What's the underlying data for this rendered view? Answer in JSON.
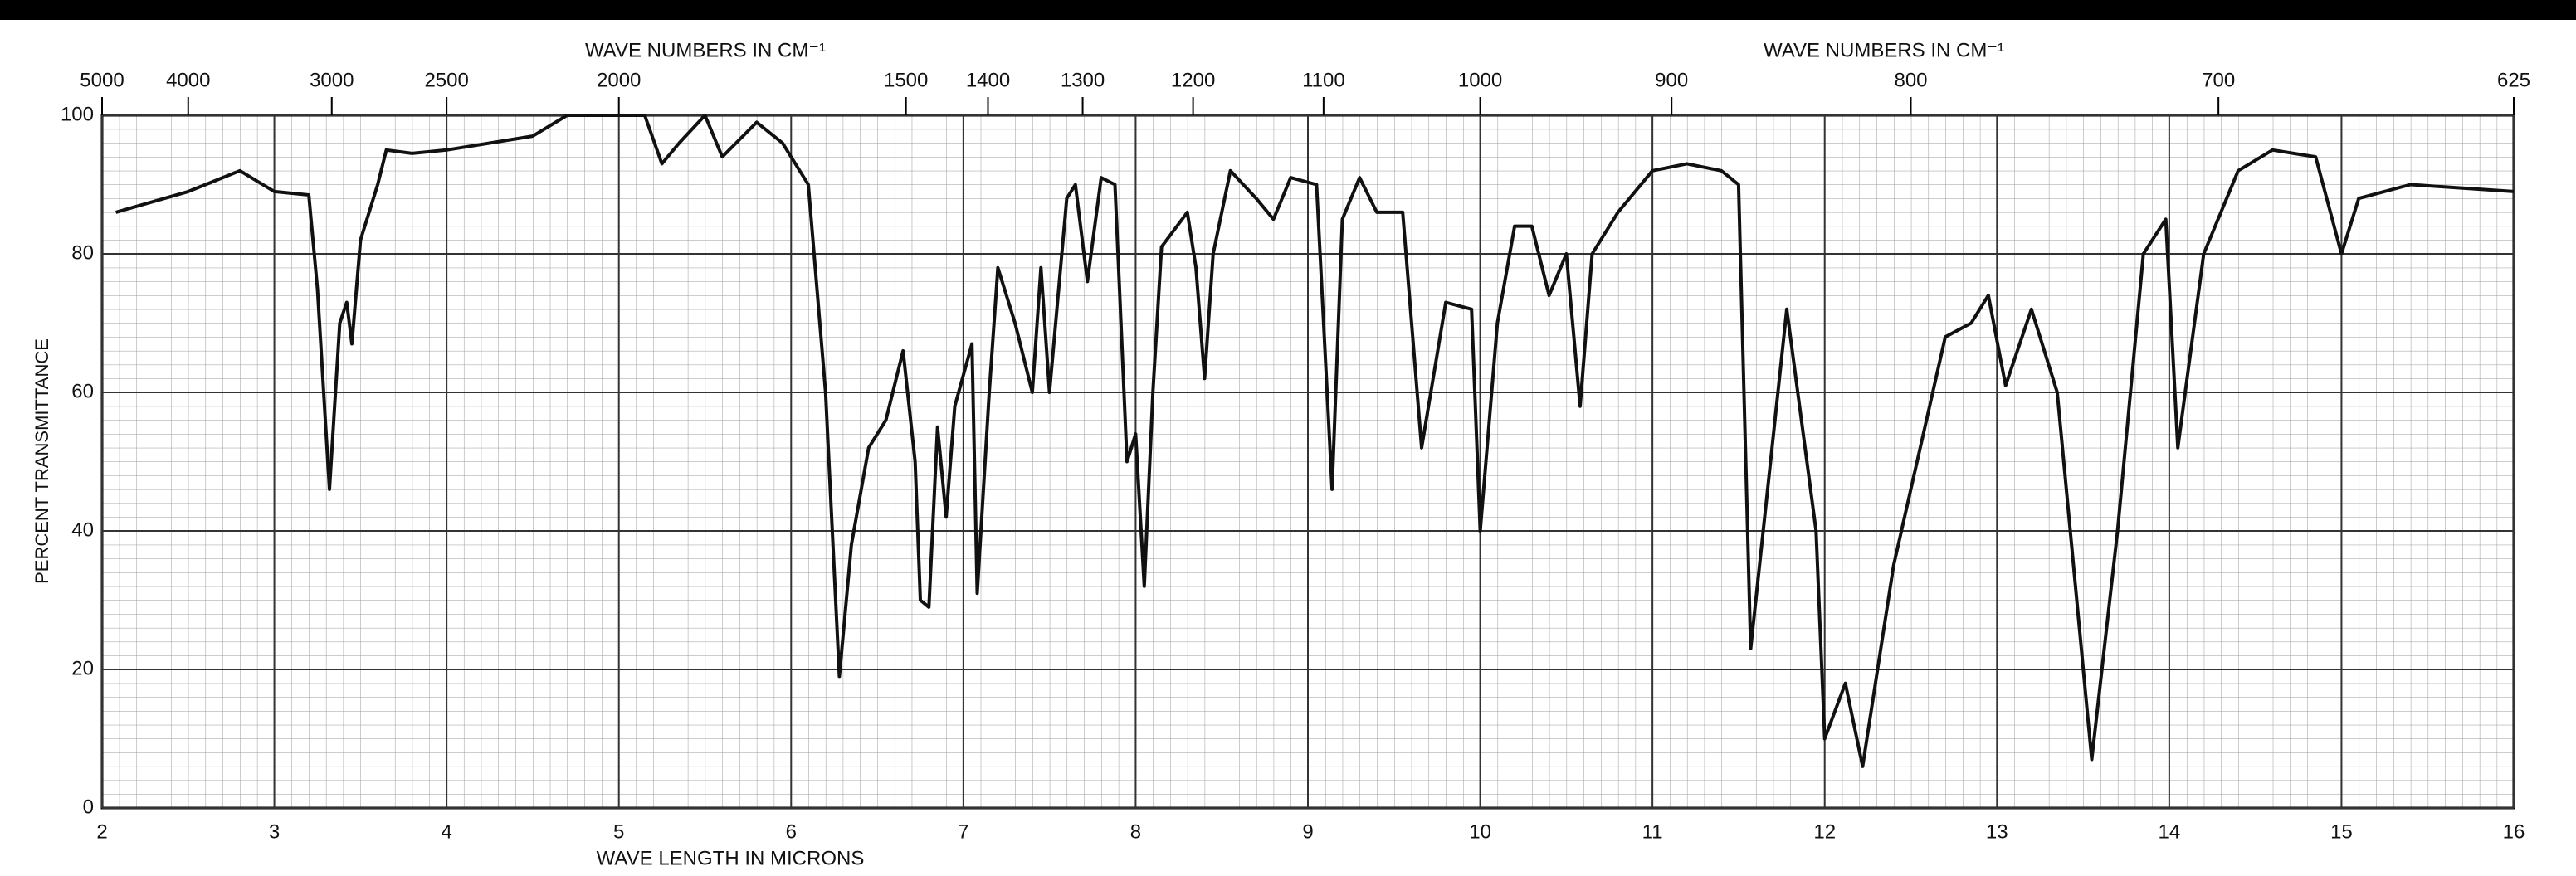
{
  "chart_data": {
    "type": "line",
    "top_axis_labels": [
      "WAVE NUMBERS IN CM⁻¹",
      "WAVE NUMBERS IN CM⁻¹"
    ],
    "xlabel": "WAVE LENGTH IN MICRONS",
    "ylabel": "PERCENT TRANSMITTANCE",
    "xlim": [
      2,
      16
    ],
    "xticks": [
      2,
      3,
      4,
      5,
      6,
      7,
      8,
      9,
      10,
      11,
      12,
      13,
      14,
      15,
      16
    ],
    "ylim": [
      0,
      100
    ],
    "yticks": [
      0,
      20,
      40,
      60,
      80,
      100
    ],
    "x2ticks": [
      5000,
      4000,
      3000,
      2500,
      2000,
      1500,
      1400,
      1300,
      1200,
      1100,
      1000,
      900,
      800,
      700,
      625
    ],
    "grid": true,
    "series": [
      {
        "color": "#111111",
        "x": [
          2.08,
          2.5,
          2.8,
          3.0,
          3.2,
          3.25,
          3.32,
          3.38,
          3.42,
          3.45,
          3.5,
          3.6,
          3.65,
          3.8,
          4.0,
          4.5,
          4.7,
          5.0,
          5.15,
          5.25,
          5.35,
          5.5,
          5.6,
          5.8,
          5.95,
          6.1,
          6.2,
          6.28,
          6.35,
          6.45,
          6.55,
          6.65,
          6.72,
          6.75,
          6.8,
          6.85,
          6.9,
          6.95,
          7.05,
          7.08,
          7.15,
          7.2,
          7.3,
          7.4,
          7.45,
          7.5,
          7.6,
          7.65,
          7.72,
          7.8,
          7.88,
          7.95,
          8.0,
          8.05,
          8.1,
          8.15,
          8.3,
          8.35,
          8.4,
          8.45,
          8.55,
          8.7,
          8.8,
          8.9,
          9.05,
          9.14,
          9.2,
          9.3,
          9.4,
          9.55,
          9.66,
          9.8,
          9.95,
          10.0,
          10.1,
          10.2,
          10.3,
          10.4,
          10.5,
          10.58,
          10.65,
          10.8,
          11.0,
          11.2,
          11.4,
          11.5,
          11.57,
          11.78,
          11.95,
          12.0,
          12.12,
          12.22,
          12.4,
          12.7,
          12.85,
          12.95,
          13.05,
          13.2,
          13.35,
          13.55,
          13.7,
          13.85,
          13.98,
          14.05,
          14.2,
          14.4,
          14.6,
          14.85,
          15.0,
          15.1,
          15.4,
          16.0
        ],
        "values": [
          86,
          89,
          92,
          89,
          88.5,
          75,
          46,
          70,
          73,
          67,
          82,
          90,
          95,
          94.5,
          95,
          97,
          100,
          100,
          100,
          93,
          96,
          100,
          94,
          99,
          96,
          90,
          60,
          19,
          38,
          52,
          56,
          66,
          50,
          30,
          29,
          55,
          42,
          58,
          67,
          31,
          60,
          78,
          70,
          60,
          78,
          60,
          88,
          90,
          76,
          91,
          90,
          50,
          54,
          32,
          60,
          81,
          86,
          78,
          62,
          80,
          92,
          88,
          85,
          91,
          90,
          46,
          85,
          91,
          86,
          86,
          52,
          73,
          72,
          40,
          70,
          84,
          84,
          74,
          80,
          58,
          80,
          86,
          92,
          93,
          92,
          90,
          23,
          72,
          40,
          10,
          18,
          6,
          35,
          68,
          70,
          74,
          61,
          72,
          60,
          7,
          40,
          80,
          85,
          52,
          80,
          92,
          95,
          94,
          80,
          88,
          90,
          89
        ]
      }
    ]
  }
}
